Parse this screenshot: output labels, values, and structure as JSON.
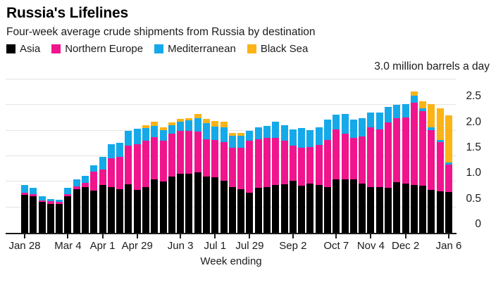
{
  "header": {
    "title": "Russia's Lifelines",
    "subtitle": "Four-week average crude shipments from Russia by destination"
  },
  "legend": [
    {
      "label": "Asia",
      "color": "#000000"
    },
    {
      "label": "Northern Europe",
      "color": "#f0158d"
    },
    {
      "label": "Mediterranean",
      "color": "#15a9ea"
    },
    {
      "label": "Black Sea",
      "color": "#fcb316"
    }
  ],
  "unit_label": "3.0 million barrels a day",
  "chart_data": {
    "type": "bar",
    "stacked": true,
    "title": "Russia's Lifelines",
    "subtitle": "Four-week average crude shipments from Russia by destination",
    "xlabel": "Week ending",
    "ylabel": "3.0 million barrels a day",
    "ylim": [
      0,
      3.0
    ],
    "ytick_step": 0.5,
    "grid": true,
    "legend_position": "top",
    "yticks": [
      {
        "value": 0,
        "label": "0"
      },
      {
        "value": 0.5,
        "label": "0.5"
      },
      {
        "value": 1.0,
        "label": "1.0"
      },
      {
        "value": 1.5,
        "label": "1.5"
      },
      {
        "value": 2.0,
        "label": "2.0"
      },
      {
        "value": 2.5,
        "label": "2.5"
      }
    ],
    "xticks": [
      {
        "index": 0,
        "label": "Jan 28"
      },
      {
        "index": 5,
        "label": "Mar 4"
      },
      {
        "index": 9,
        "label": "Apr 1"
      },
      {
        "index": 13,
        "label": "Apr 29"
      },
      {
        "index": 18,
        "label": "Jun 3"
      },
      {
        "index": 22,
        "label": "Jul 1"
      },
      {
        "index": 26,
        "label": "Jul 29"
      },
      {
        "index": 31,
        "label": "Sep 2"
      },
      {
        "index": 36,
        "label": "Oct 7"
      },
      {
        "index": 40,
        "label": "Nov 4"
      },
      {
        "index": 44,
        "label": "Dec 2"
      },
      {
        "index": 49,
        "label": "Jan 6"
      }
    ],
    "n_bars": 50,
    "series": [
      {
        "name": "Asia",
        "color": "#000000",
        "values": [
          0.74,
          0.72,
          0.6,
          0.57,
          0.57,
          0.72,
          0.86,
          0.9,
          0.82,
          0.93,
          0.9,
          0.85,
          0.95,
          0.84,
          0.9,
          1.05,
          1.01,
          1.1,
          1.16,
          1.15,
          1.18,
          1.1,
          1.09,
          1.02,
          0.89,
          0.86,
          0.79,
          0.88,
          0.9,
          0.93,
          0.95,
          1.02,
          0.92,
          0.96,
          0.94,
          0.9,
          1.05,
          1.05,
          1.04,
          0.96,
          0.9,
          0.9,
          0.88,
          0.99,
          0.97,
          0.93,
          0.92,
          0.84,
          0.81,
          0.8
        ]
      },
      {
        "name": "Northern Europe",
        "color": "#f0158d",
        "values": [
          0.04,
          0.04,
          0.04,
          0.05,
          0.03,
          0.04,
          0.05,
          0.08,
          0.38,
          0.31,
          0.56,
          0.63,
          0.76,
          0.9,
          0.9,
          0.82,
          0.79,
          0.84,
          0.83,
          0.85,
          0.8,
          0.73,
          0.73,
          0.75,
          0.77,
          0.81,
          1.01,
          0.95,
          0.96,
          0.93,
          0.85,
          0.68,
          0.75,
          0.72,
          0.78,
          0.92,
          0.97,
          0.89,
          0.82,
          0.92,
          1.16,
          1.13,
          1.28,
          1.26,
          1.29,
          1.62,
          1.46,
          1.17,
          0.96,
          0.54
        ]
      },
      {
        "name": "Mediterranean",
        "color": "#15a9ea",
        "values": [
          0.16,
          0.12,
          0.08,
          0.04,
          0.05,
          0.12,
          0.13,
          0.14,
          0.12,
          0.25,
          0.27,
          0.28,
          0.28,
          0.3,
          0.25,
          0.22,
          0.21,
          0.16,
          0.18,
          0.2,
          0.27,
          0.32,
          0.26,
          0.29,
          0.24,
          0.23,
          0.2,
          0.24,
          0.23,
          0.31,
          0.3,
          0.33,
          0.38,
          0.33,
          0.35,
          0.39,
          0.29,
          0.38,
          0.36,
          0.36,
          0.29,
          0.32,
          0.3,
          0.25,
          0.26,
          0.14,
          0.06,
          0.05,
          0.05,
          0.03
        ]
      },
      {
        "name": "Black Sea",
        "color": "#fcb316",
        "values": [
          0,
          0,
          0,
          0,
          0,
          0,
          0,
          0,
          0,
          0,
          0,
          0,
          0,
          0,
          0.06,
          0.08,
          0.05,
          0.06,
          0.06,
          0.05,
          0.08,
          0.08,
          0.11,
          0.11,
          0.05,
          0.06,
          0,
          0,
          0,
          0,
          0,
          0,
          0,
          0,
          0,
          0,
          0,
          0,
          0,
          0,
          0,
          0,
          0,
          0,
          0,
          0.07,
          0.14,
          0.46,
          0.61,
          0.93
        ]
      }
    ]
  }
}
